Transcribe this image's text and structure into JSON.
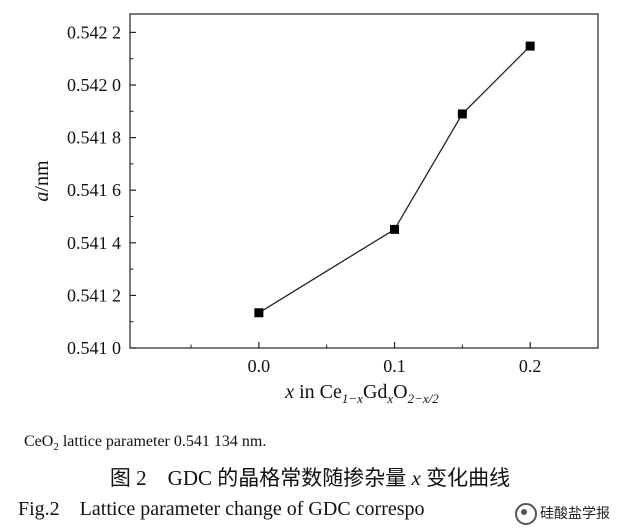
{
  "chart_data": {
    "type": "line",
    "ylabel_italic": "a",
    "ylabel_rest": "/nm",
    "xlabel": {
      "x": "x",
      "in": " in Ce",
      "sub1": "1−x",
      "gd": "Gd",
      "sub2": "x",
      "o": "O",
      "sub3": "2−x/2"
    },
    "x": [
      0.0,
      0.1,
      0.15,
      0.2
    ],
    "y": [
      0.541134,
      0.541451,
      0.54189,
      0.542148
    ],
    "xlim": [
      -0.095,
      0.25
    ],
    "ylim": [
      0.541,
      0.54227
    ],
    "xticks": [
      0.0,
      0.1,
      0.2
    ],
    "xtick_labels": [
      "0.0",
      "0.1",
      "0.2"
    ],
    "yticks": [
      0.541,
      0.5412,
      0.5414,
      0.5416,
      0.5418,
      0.542,
      0.5422
    ],
    "ytick_labels": [
      "0.541 0",
      "0.541 2",
      "0.541 4",
      "0.541 6",
      "0.541 8",
      "0.542 0",
      "0.542 2"
    ],
    "grid": false,
    "marker": "square",
    "line_color": "#222222",
    "marker_color": "#000000"
  },
  "caption": {
    "note_ce": "CeO",
    "note_sub": "2",
    "note_rest": " lattice parameter 0.541 134 nm.",
    "zh_pre": "图 2　GDC 的晶格常数随掺杂量 ",
    "zh_var": "x",
    "zh_post": " 变化曲线",
    "en": "Fig.2　Lattice parameter change of GDC correspo"
  },
  "watermark": {
    "text": "硅酸盐学报"
  }
}
